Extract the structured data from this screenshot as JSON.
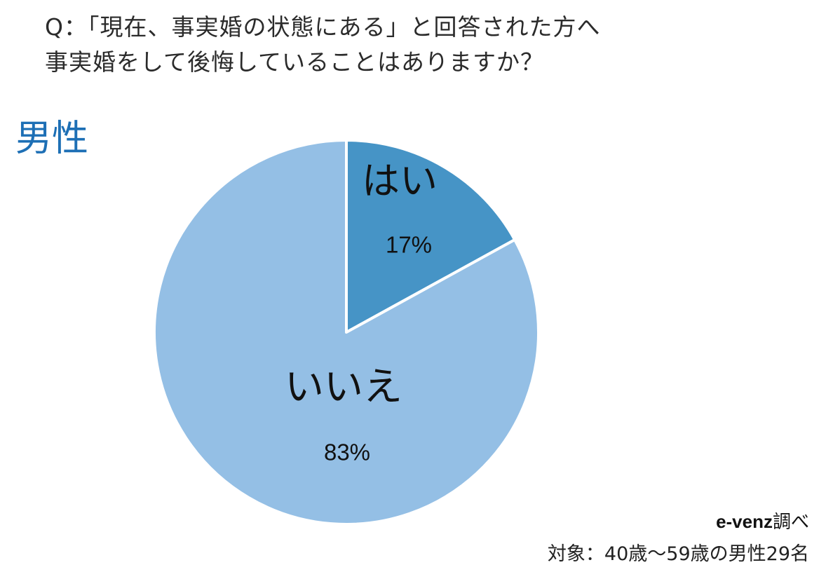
{
  "question": {
    "line1": "Q：「現在、事実婚の状態にある」と回答された方へ",
    "line2": "事実婚をして後悔していることはありますか？"
  },
  "group_label": "男性",
  "source": {
    "brand": "e-venz",
    "suffix": "調べ"
  },
  "target": "対象：40歳〜59歳の男性29名",
  "colors": {
    "yes": "#4694c6",
    "no": "#94bfe5",
    "title": "#1d6fb5",
    "border": "#ffffff"
  },
  "chart_data": {
    "type": "pie",
    "title": "",
    "slices": [
      {
        "label": "はい",
        "value": 17,
        "value_label": "17%",
        "color": "#4694c6"
      },
      {
        "label": "いいえ",
        "value": 83,
        "value_label": "83%",
        "color": "#94bfe5"
      }
    ],
    "start": "12 o'clock",
    "direction": "clockwise"
  }
}
